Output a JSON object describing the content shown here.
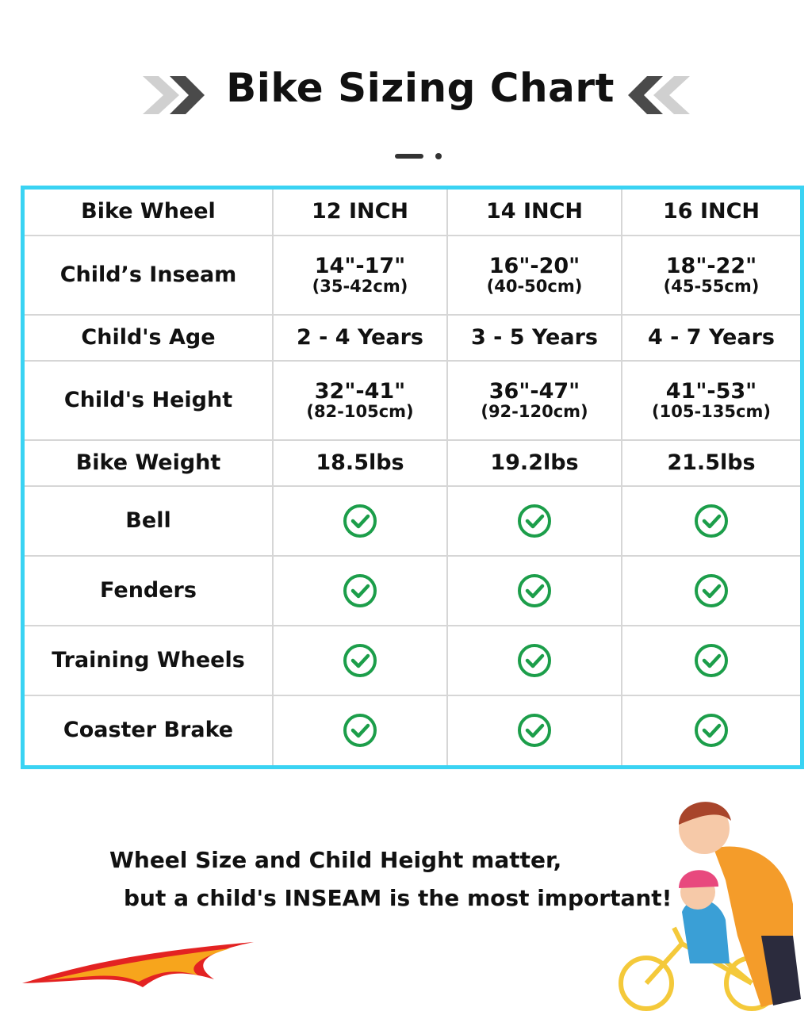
{
  "header": {
    "title": "Bike Sizing Chart"
  },
  "table": {
    "columns": [
      "Bike Wheel",
      "12 INCH",
      "14 INCH",
      "16 INCH"
    ],
    "rows": [
      {
        "label": "Child’s Inseam",
        "cells": [
          {
            "main": "14\"-17\"",
            "sub": "(35-42cm)"
          },
          {
            "main": "16\"-20\"",
            "sub": "(40-50cm)"
          },
          {
            "main": "18\"-22\"",
            "sub": "(45-55cm)"
          }
        ]
      },
      {
        "label": "Child's Age",
        "cells": [
          {
            "main": "2 - 4 Years"
          },
          {
            "main": "3 - 5 Years"
          },
          {
            "main": "4 - 7 Years"
          }
        ]
      },
      {
        "label": "Child's Height",
        "cells": [
          {
            "main": "32\"-41\"",
            "sub": "(82-105cm)"
          },
          {
            "main": "36\"-47\"",
            "sub": "(92-120cm)"
          },
          {
            "main": "41\"-53\"",
            "sub": "(105-135cm)"
          }
        ]
      },
      {
        "label": "Bike Weight",
        "cells": [
          {
            "main": "18.5lbs"
          },
          {
            "main": "19.2lbs"
          },
          {
            "main": "21.5lbs"
          }
        ]
      },
      {
        "label": "Bell",
        "cells": [
          true,
          true,
          true
        ]
      },
      {
        "label": "Fenders",
        "cells": [
          true,
          true,
          true
        ]
      },
      {
        "label": "Training Wheels",
        "cells": [
          true,
          true,
          true
        ]
      },
      {
        "label": "Coaster Brake",
        "cells": [
          true,
          true,
          true
        ]
      }
    ]
  },
  "footer": {
    "lines": [
      "Wheel Size and Child Height matter,",
      "but a child's INSEAM is the most important!"
    ]
  }
}
